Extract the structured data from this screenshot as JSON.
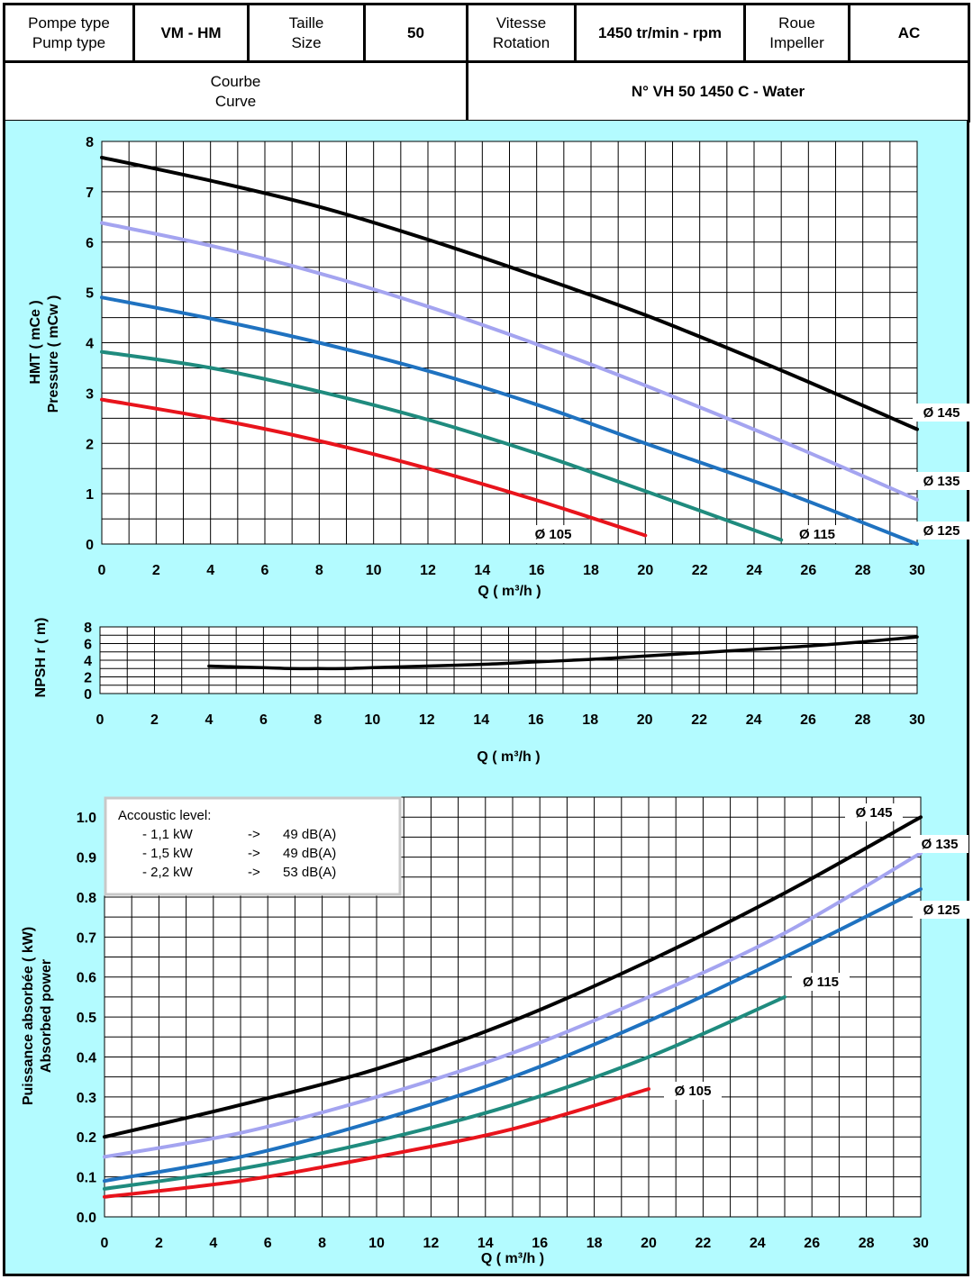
{
  "header": {
    "pump_type_label_fr": "Pompe type",
    "pump_type_label_en": "Pump type",
    "pump_type_value": "VM - HM",
    "size_label_fr": "Taille",
    "size_label_en": "Size",
    "size_value": "50",
    "speed_label_fr": "Vitesse",
    "speed_label_en": "Rotation",
    "speed_value": "1450 tr/min - rpm",
    "impeller_label_fr": "Roue",
    "impeller_label_en": "Impeller",
    "impeller_value": "AC",
    "curve_label_fr": "Courbe",
    "curve_label_en": "Curve",
    "curve_value": "N° VH 50 1450 C - Water"
  },
  "colors": {
    "background": "#b3fbff",
    "grid": "#000000",
    "d145": "#000000",
    "d135": "#a4a4f0",
    "d125": "#1f72c0",
    "d115": "#1f8b7e",
    "d105": "#e8141c"
  },
  "chart_data": [
    {
      "id": "head",
      "type": "line",
      "xlabel": "Q ( m³/h )",
      "ylabel_line1": "HMT ( mCe )",
      "ylabel_line2": "Pressure ( mCw )",
      "xlim": [
        0,
        30
      ],
      "ylim": [
        0,
        8
      ],
      "xticks": [
        0,
        2,
        4,
        6,
        8,
        10,
        12,
        14,
        16,
        18,
        20,
        22,
        24,
        26,
        28,
        30
      ],
      "yticks": [
        0,
        1,
        2,
        3,
        4,
        5,
        6,
        7,
        8
      ],
      "grid": true,
      "series": [
        {
          "name": "Ø 145",
          "color_key": "d145",
          "x": [
            0,
            4,
            8,
            12,
            16,
            20,
            25,
            30
          ],
          "y": [
            7.68,
            7.22,
            6.7,
            6.05,
            5.32,
            4.55,
            3.45,
            2.28
          ]
        },
        {
          "name": "Ø 135",
          "color_key": "d135",
          "x": [
            0,
            4,
            8,
            12,
            16,
            20,
            25,
            30
          ],
          "y": [
            6.38,
            5.93,
            5.38,
            4.72,
            3.97,
            3.15,
            2.05,
            0.88
          ]
        },
        {
          "name": "Ø 125",
          "color_key": "d125",
          "x": [
            0,
            4,
            8,
            12,
            16,
            20,
            25,
            30
          ],
          "y": [
            4.9,
            4.48,
            4.0,
            3.44,
            2.77,
            2.0,
            1.05,
            0.0
          ]
        },
        {
          "name": "Ø 115",
          "color_key": "d115",
          "x": [
            0,
            4,
            8,
            12,
            16,
            20,
            25
          ],
          "y": [
            3.82,
            3.5,
            3.03,
            2.47,
            1.8,
            1.05,
            0.08
          ]
        },
        {
          "name": "Ø 105",
          "color_key": "d105",
          "x": [
            0,
            4,
            8,
            12,
            16,
            20
          ],
          "y": [
            2.87,
            2.5,
            2.05,
            1.5,
            0.87,
            0.17
          ]
        }
      ]
    },
    {
      "id": "npsh",
      "type": "line",
      "xlabel": "Q ( m³/h )",
      "ylabel": "NPSH r ( m)",
      "xlim": [
        0,
        30
      ],
      "ylim": [
        0,
        8
      ],
      "xticks": [
        0,
        2,
        4,
        6,
        8,
        10,
        12,
        14,
        16,
        18,
        20,
        22,
        24,
        26,
        28,
        30
      ],
      "yticks": [
        0,
        2,
        4,
        6,
        8
      ],
      "grid": true,
      "series": [
        {
          "name": "",
          "color_key": "d145",
          "x": [
            4,
            6,
            7,
            8,
            9,
            10,
            12,
            14,
            16,
            18,
            20,
            22,
            24,
            26,
            28,
            30
          ],
          "y": [
            3.3,
            3.1,
            3.0,
            3.0,
            3.0,
            3.1,
            3.3,
            3.5,
            3.8,
            4.1,
            4.5,
            4.9,
            5.3,
            5.7,
            6.2,
            6.8
          ]
        }
      ]
    },
    {
      "id": "power",
      "type": "line",
      "xlabel": "Q ( m³/h )",
      "ylabel_line1": "Puissance absorbée ( kW)",
      "ylabel_line2": "Absorbed power",
      "xlim": [
        0,
        30
      ],
      "ylim": [
        0,
        1.05
      ],
      "xticks": [
        0,
        2,
        4,
        6,
        8,
        10,
        12,
        14,
        16,
        18,
        20,
        22,
        24,
        26,
        28,
        30
      ],
      "yticks": [
        "0.0",
        "0.1",
        "0.2",
        "0.3",
        "0.4",
        "0.5",
        "0.6",
        "0.7",
        "0.8",
        "0.9",
        "1.0"
      ],
      "grid": true,
      "series": [
        {
          "name": "Ø 145",
          "color_key": "d145",
          "x": [
            0,
            5,
            10,
            15,
            20,
            25,
            30
          ],
          "y": [
            0.2,
            0.28,
            0.37,
            0.49,
            0.64,
            0.81,
            1.0
          ]
        },
        {
          "name": "Ø 135",
          "color_key": "d135",
          "x": [
            0,
            5,
            10,
            15,
            20,
            25,
            30
          ],
          "y": [
            0.15,
            0.21,
            0.3,
            0.41,
            0.55,
            0.71,
            0.91
          ]
        },
        {
          "name": "Ø 125",
          "color_key": "d125",
          "x": [
            0,
            5,
            10,
            15,
            20,
            25,
            30
          ],
          "y": [
            0.09,
            0.15,
            0.24,
            0.35,
            0.49,
            0.65,
            0.82
          ]
        },
        {
          "name": "Ø 115",
          "color_key": "d115",
          "x": [
            0,
            5,
            10,
            15,
            20,
            25
          ],
          "y": [
            0.07,
            0.12,
            0.19,
            0.28,
            0.4,
            0.55
          ]
        },
        {
          "name": "Ø 105",
          "color_key": "d105",
          "x": [
            0,
            5,
            10,
            15,
            20
          ],
          "y": [
            0.05,
            0.09,
            0.15,
            0.22,
            0.32
          ]
        }
      ]
    }
  ],
  "acoustic": {
    "title": "Accoustic level:",
    "rows": [
      {
        "power": "- 1,1 kW",
        "arrow": "->",
        "level": "49 dB(A)"
      },
      {
        "power": "- 1,5 kW",
        "arrow": "->",
        "level": "49 dB(A)"
      },
      {
        "power": "- 2,2 kW",
        "arrow": "->",
        "level": "53 dB(A)"
      }
    ]
  }
}
